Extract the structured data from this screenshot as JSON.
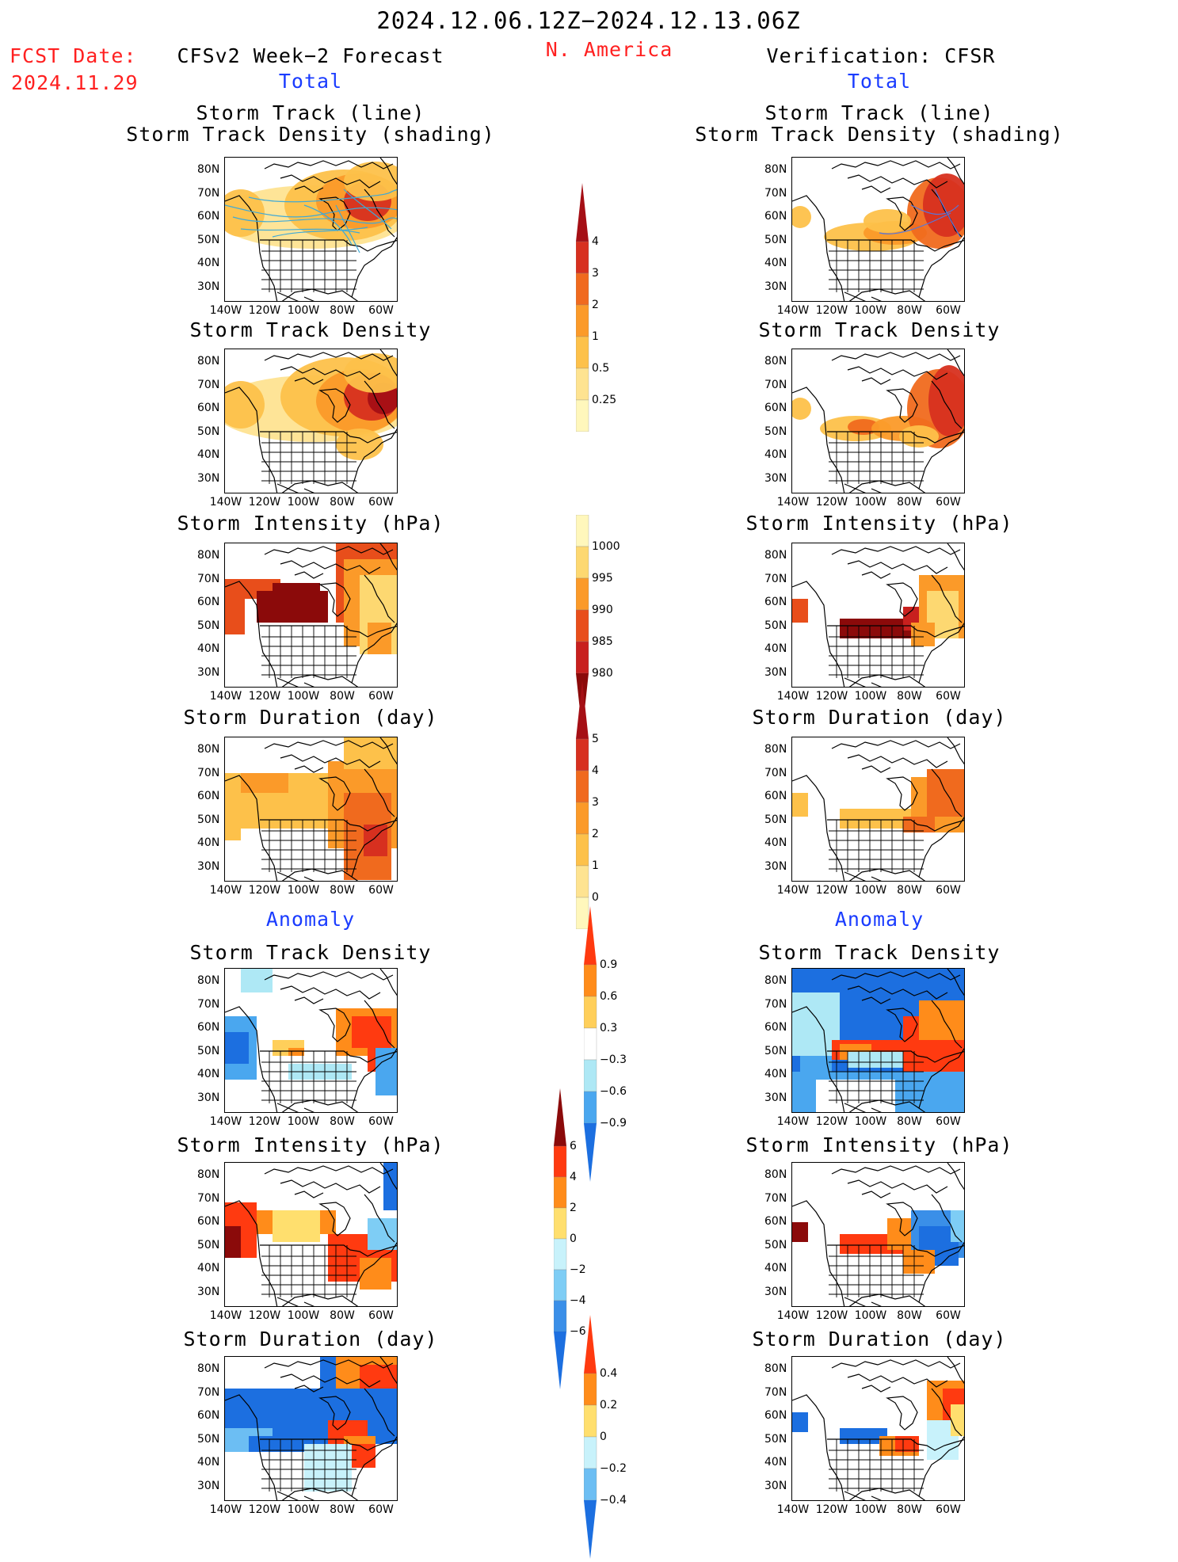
{
  "header": {
    "period": "2024.12.06.12Z−2024.12.13.06Z",
    "fcst_date_label": "FCST Date:",
    "fcst_date": "2024.11.29",
    "forecast_title": "CFSv2 Week−2 Forecast",
    "region": "N. America",
    "verification_title": "Verification: CFSR",
    "total_label": "Total",
    "anomaly_label": "Anomaly"
  },
  "colors": {
    "title_red": "#ff2020",
    "section_blue": "#1a3cff",
    "track_line": "#3fa9d6"
  },
  "axes": {
    "lat_labels": [
      "80N",
      "70N",
      "60N",
      "50N",
      "40N",
      "30N"
    ],
    "lon_labels": [
      "140W",
      "120W",
      "100W",
      "80W",
      "60W"
    ]
  },
  "panels": [
    {
      "id": "fc-track",
      "column": "forecast",
      "section": "total",
      "title_lines": [
        "Storm Track (line)",
        "Storm Track Density (shading)"
      ],
      "scale": "density"
    },
    {
      "id": "fc-density",
      "column": "forecast",
      "section": "total",
      "title_lines": [
        "Storm Track Density"
      ],
      "scale": "density"
    },
    {
      "id": "fc-intensity",
      "column": "forecast",
      "section": "total",
      "title_lines": [
        "Storm Intensity (hPa)"
      ],
      "scale": "intensity"
    },
    {
      "id": "fc-duration",
      "column": "forecast",
      "section": "total",
      "title_lines": [
        "Storm Duration (day)"
      ],
      "scale": "duration"
    },
    {
      "id": "fc-anom-density",
      "column": "forecast",
      "section": "anomaly",
      "title_lines": [
        "Storm Track Density"
      ],
      "scale": "anom_density"
    },
    {
      "id": "fc-anom-intensity",
      "column": "forecast",
      "section": "anomaly",
      "title_lines": [
        "Storm Intensity (hPa)"
      ],
      "scale": "anom_intensity"
    },
    {
      "id": "fc-anom-duration",
      "column": "forecast",
      "section": "anomaly",
      "title_lines": [
        "Storm Duration (day)"
      ],
      "scale": "anom_duration"
    },
    {
      "id": "vf-track",
      "column": "verification",
      "section": "total",
      "title_lines": [
        "Storm Track (line)",
        "Storm Track Density (shading)"
      ],
      "scale": "density"
    },
    {
      "id": "vf-density",
      "column": "verification",
      "section": "total",
      "title_lines": [
        "Storm Track Density"
      ],
      "scale": "density"
    },
    {
      "id": "vf-intensity",
      "column": "verification",
      "section": "total",
      "title_lines": [
        "Storm Intensity (hPa)"
      ],
      "scale": "intensity"
    },
    {
      "id": "vf-duration",
      "column": "verification",
      "section": "total",
      "title_lines": [
        "Storm Duration (day)"
      ],
      "scale": "duration"
    },
    {
      "id": "vf-anom-density",
      "column": "verification",
      "section": "anomaly",
      "title_lines": [
        "Storm Track Density"
      ],
      "scale": "anom_density"
    },
    {
      "id": "vf-anom-intensity",
      "column": "verification",
      "section": "anomaly",
      "title_lines": [
        "Storm Intensity (hPa)"
      ],
      "scale": "anom_intensity"
    },
    {
      "id": "vf-anom-duration",
      "column": "verification",
      "section": "anomaly",
      "title_lines": [
        "Storm Duration (day)"
      ],
      "scale": "anom_duration"
    }
  ],
  "colorbars": [
    {
      "id": "density",
      "labels": [
        "4",
        "3",
        "2",
        "1",
        "0.5",
        "0.25"
      ],
      "colors": [
        "#a50f15",
        "#d7301f",
        "#f06a1e",
        "#fb9a29",
        "#fdc14a",
        "#fee391",
        "#fff7bc"
      ],
      "triangle_top": true,
      "triangle_bottom": false
    },
    {
      "id": "intensity",
      "labels": [
        "1000",
        "995",
        "990",
        "985",
        "980"
      ],
      "colors": [
        "#fff7bc",
        "#fdd871",
        "#fb9a29",
        "#e84e1b",
        "#c8201e",
        "#8b0a0a"
      ],
      "triangle_top": false,
      "triangle_bottom": true
    },
    {
      "id": "duration",
      "labels": [
        "5",
        "4",
        "3",
        "2",
        "1",
        "0"
      ],
      "colors": [
        "#a50f15",
        "#d7301f",
        "#f06a1e",
        "#fb9a29",
        "#fdc14a",
        "#fee391",
        "#fff7bc"
      ],
      "triangle_top": true,
      "triangle_bottom": false
    },
    {
      "id": "anom_density",
      "labels": [
        "0.9",
        "0.6",
        "0.3",
        "−0.3",
        "−0.6",
        "−0.9"
      ],
      "colors": [
        "#ff3a10",
        "#ff8c1a",
        "#ffcf5a",
        "#ffffff",
        "#aee8f5",
        "#4aa7ef",
        "#1c6fe0"
      ],
      "triangle_top": true,
      "triangle_bottom": true
    },
    {
      "id": "anom_intensity",
      "labels": [
        "6",
        "4",
        "2",
        "0",
        "−2",
        "−4",
        "−6"
      ],
      "colors": [
        "#8b0a0a",
        "#ff3a10",
        "#ff8c1a",
        "#ffdf6e",
        "#c8f2fb",
        "#7ecdf5",
        "#3a8fe8",
        "#1c6fe0"
      ],
      "triangle_top": true,
      "triangle_bottom": true
    },
    {
      "id": "anom_duration",
      "labels": [
        "0.4",
        "0.2",
        "0",
        "−0.2",
        "−0.4"
      ],
      "colors": [
        "#ff3a10",
        "#ff8c1a",
        "#ffdf6e",
        "#c8f2fb",
        "#6cbef3",
        "#1c6fe0"
      ],
      "triangle_top": true,
      "triangle_bottom": true
    }
  ],
  "chart_data": {
    "type": "heatmap",
    "title": "2024.12.06.12Z−2024.12.13.06Z",
    "region": "N. America",
    "grid": false,
    "note_fields": [
      "Storm Track Density",
      "Storm Intensity (hPa)",
      "Storm Duration (day)"
    ]
  }
}
